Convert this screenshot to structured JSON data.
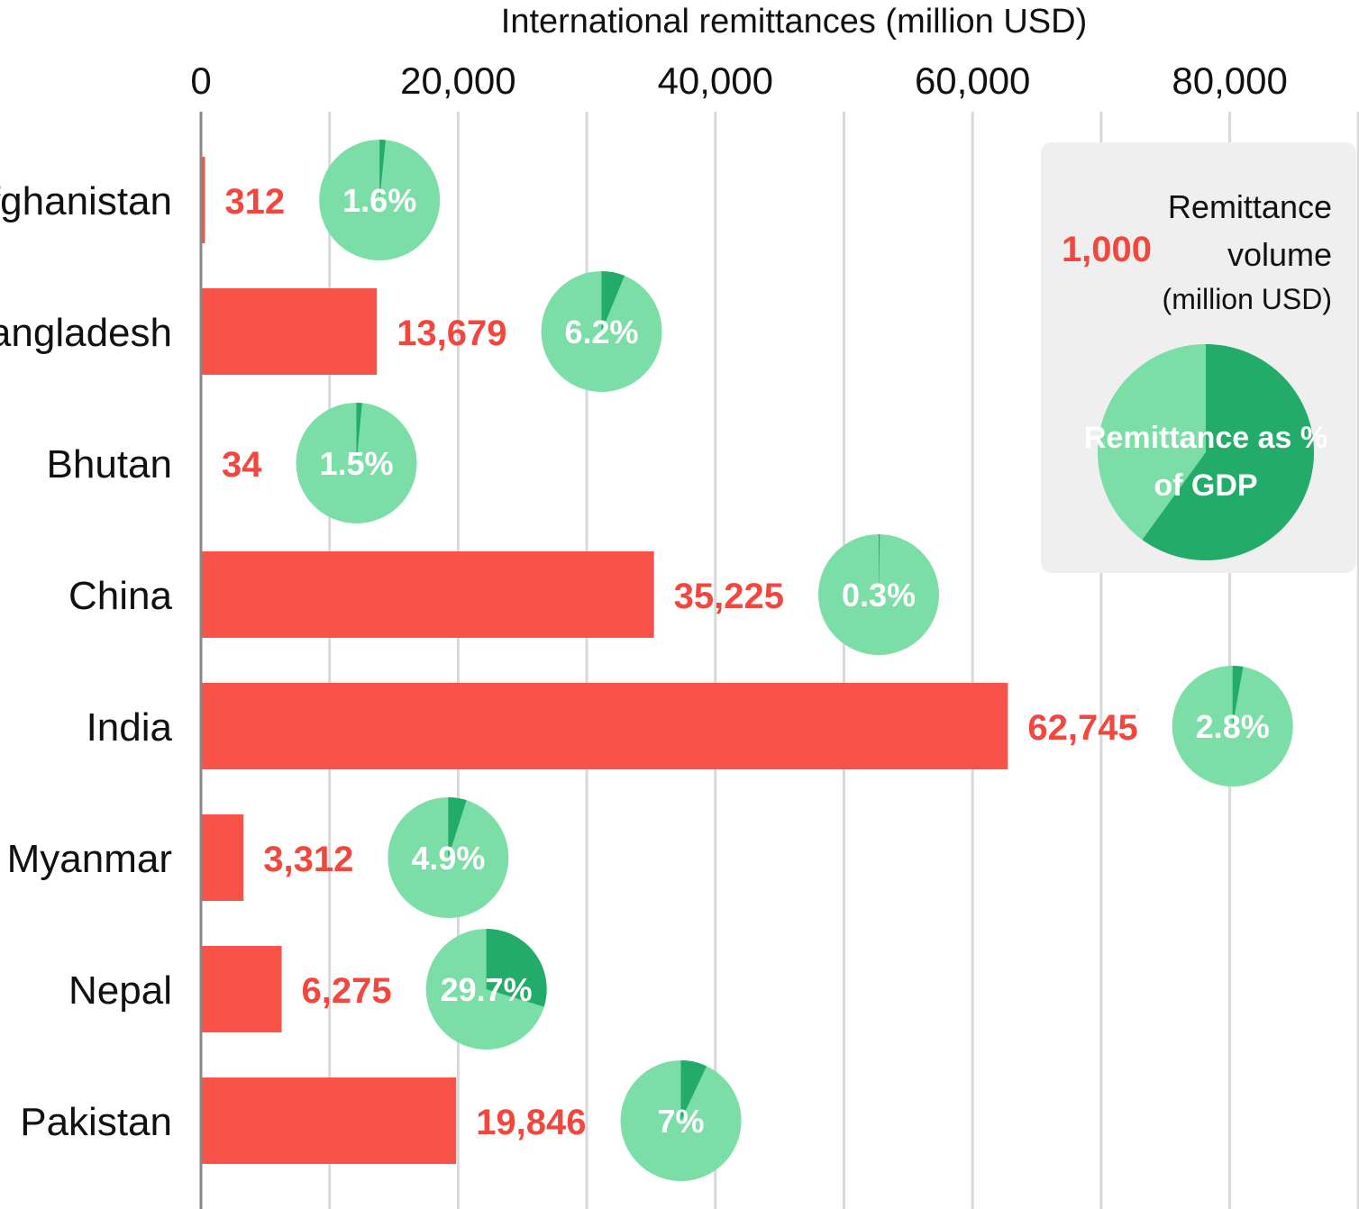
{
  "chart_data": {
    "type": "bar",
    "title": "International remittances (million USD)",
    "xlabel": "International remittances (million USD)",
    "ylabel": "",
    "xlim": [
      0,
      90000
    ],
    "ticks": [
      0,
      20000,
      40000,
      60000,
      80000
    ],
    "tick_labels": [
      "0",
      "20,000",
      "40,000",
      "60,000",
      "80,000"
    ],
    "categories": [
      "Afghanistan",
      "Bangladesh",
      "Bhutan",
      "China",
      "India",
      "Myanmar",
      "Nepal",
      "Pakistan"
    ],
    "series": [
      {
        "name": "Remittance volume (million USD)",
        "values": [
          312,
          13679,
          34,
          35225,
          62745,
          3312,
          6275,
          19846
        ],
        "labels": [
          "312",
          "13,679",
          "34",
          "35,225",
          "62,745",
          "3,312",
          "6,275",
          "19,846"
        ]
      },
      {
        "name": "Remittance as % of GDP",
        "values": [
          1.6,
          6.2,
          1.5,
          0.3,
          2.8,
          4.9,
          29.7,
          7
        ],
        "labels": [
          "1.6%",
          "6.2%",
          "1.5%",
          "0.3%",
          "2.8%",
          "4.9%",
          "29.7%",
          "7%"
        ]
      }
    ],
    "legend": {
      "position": "top-right",
      "value_example": "1,000",
      "volume_line1": "Remittance",
      "volume_line2": "volume",
      "volume_unit": "(million USD)",
      "pie_line1": "Remittance as %",
      "pie_line2": "of GDP",
      "pie_example_pct": 60
    },
    "colors": {
      "bar": "#f95248",
      "value_text": "#f2473e",
      "pie_base": "#7adea6",
      "pie_slice": "#22ab69",
      "gridline": "#d8d8d8",
      "axis": "#888888",
      "legend_bg": "#efefef"
    }
  }
}
